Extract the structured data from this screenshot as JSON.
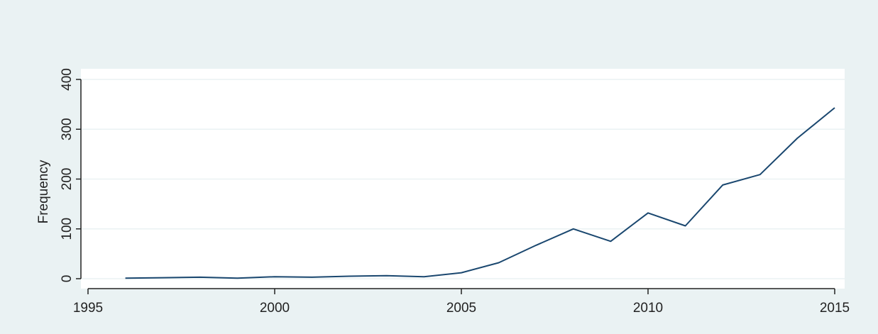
{
  "chart_data": {
    "type": "line",
    "title": "",
    "xlabel": "",
    "ylabel": "Frequency",
    "xlim": [
      1995,
      2015
    ],
    "ylim": [
      0,
      400
    ],
    "xticks": [
      1995,
      2000,
      2005,
      2010,
      2015
    ],
    "yticks": [
      0,
      100,
      200,
      300,
      400
    ],
    "grid": true,
    "legend": "none",
    "series": [
      {
        "x": [
          1996,
          1997,
          1998,
          1999,
          2000,
          2001,
          2002,
          2003,
          2004,
          2005,
          2006,
          2007,
          2008,
          2009,
          2010,
          2011,
          2012,
          2013,
          2014,
          2015
        ],
        "values": [
          1,
          2,
          3,
          1,
          4,
          3,
          5,
          6,
          4,
          12,
          32,
          67,
          100,
          75,
          132,
          106,
          188,
          209,
          282,
          343
        ]
      }
    ],
    "colors": {
      "background": "#eaf2f3",
      "plot_background": "#ffffff",
      "grid": "#eaf2f3",
      "line": "#1a476f",
      "axis": "#222222"
    }
  }
}
